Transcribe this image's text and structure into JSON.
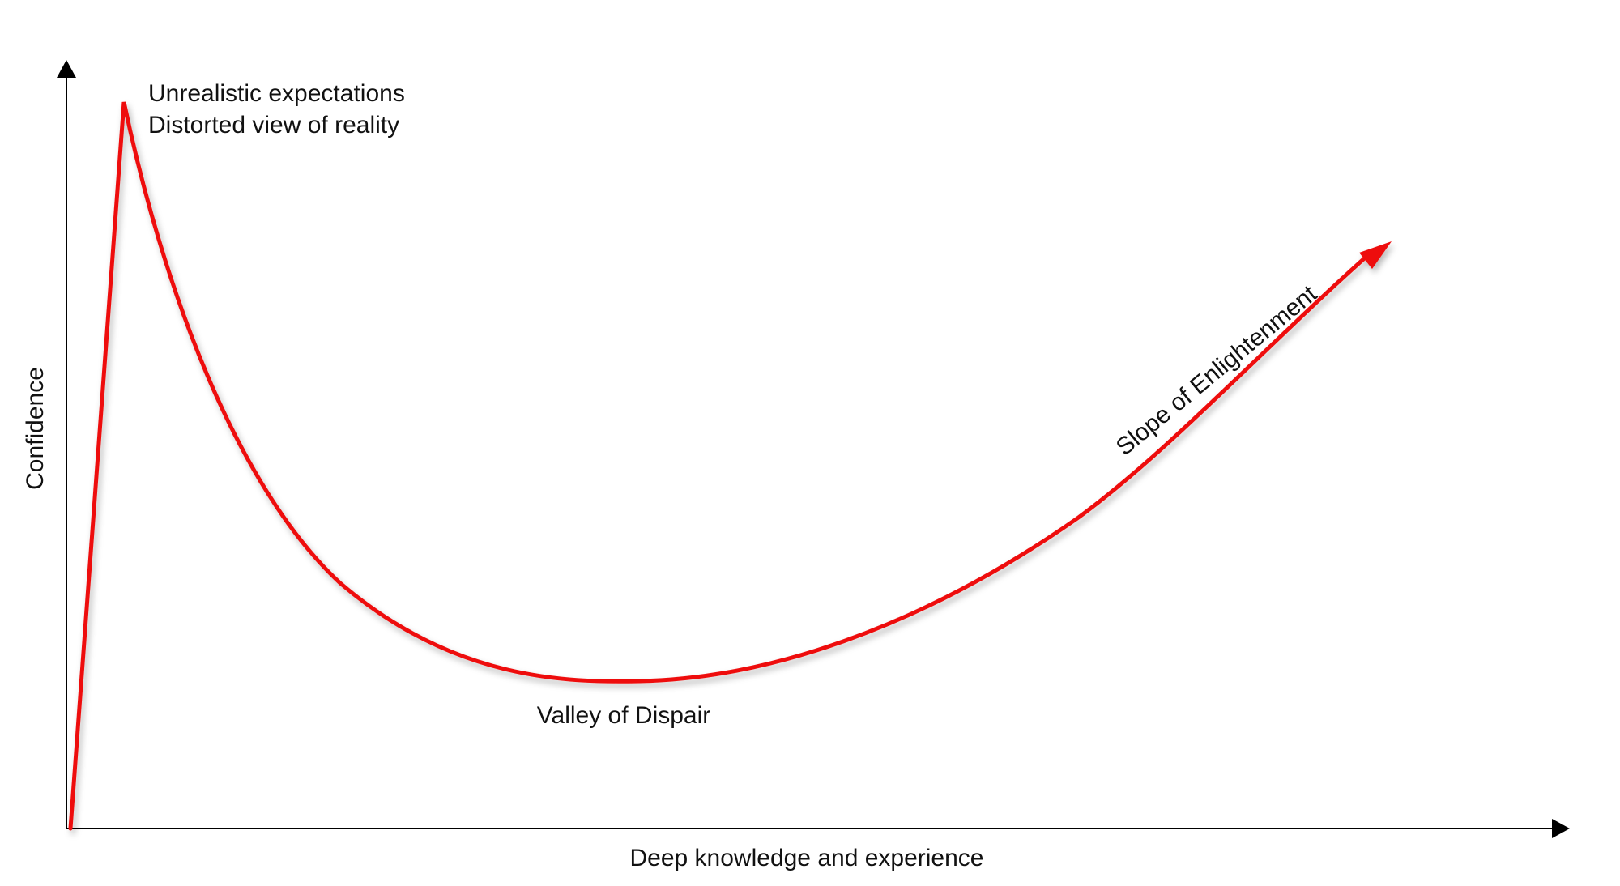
{
  "diagram": {
    "y_axis_label": "Confidence",
    "x_axis_label": "Deep knowledge and experience",
    "peak_label_line1": "Unrealistic expectations",
    "peak_label_line2": "Distorted view of reality",
    "valley_label": "Valley of Dispair",
    "slope_label": "Slope of Enlightenment",
    "curve_color": "#ee1111",
    "axis_color": "#000000"
  }
}
